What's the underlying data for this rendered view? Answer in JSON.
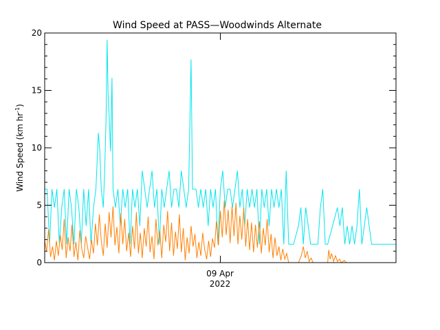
{
  "chart_data": {
    "type": "line",
    "title": "Wind Speed at PASS—Woodwinds Alternate",
    "ylabel_main": "Wind Speed (km hr",
    "ylabel_sup": "-1",
    "ylabel_close": ")",
    "xlabel_line1": "09 Apr",
    "xlabel_line2": "2022",
    "ylim": [
      0,
      20
    ],
    "yticks": [
      {
        "value": 0,
        "label": "0"
      },
      {
        "value": 5,
        "label": "5"
      },
      {
        "value": 10,
        "label": "10"
      },
      {
        "value": 15,
        "label": "15"
      },
      {
        "value": 20,
        "label": "20"
      }
    ],
    "x_hours": [
      0,
      72
    ],
    "x_major_tick_hour": 36,
    "grid": false,
    "colors": {
      "gust": "#00e5ee",
      "mean": "#ff7f00",
      "axis": "#000000"
    },
    "series": [
      {
        "key": "gust",
        "points": [
          [
            0,
            6.4
          ],
          [
            0.5,
            6.4
          ],
          [
            1,
            1.6
          ],
          [
            1.5,
            6.4
          ],
          [
            2,
            4.8
          ],
          [
            2.5,
            6.4
          ],
          [
            3,
            1.6
          ],
          [
            3.5,
            4.8
          ],
          [
            4,
            6.4
          ],
          [
            4.5,
            1.6
          ],
          [
            5,
            6.4
          ],
          [
            5.5,
            4.8
          ],
          [
            6,
            1.6
          ],
          [
            6.5,
            6.4
          ],
          [
            7,
            4.8
          ],
          [
            7.5,
            1.6
          ],
          [
            8,
            6.4
          ],
          [
            8.5,
            3.2
          ],
          [
            9,
            6.4
          ],
          [
            9.5,
            1.6
          ],
          [
            10,
            4.8
          ],
          [
            10.5,
            6.4
          ],
          [
            11,
            11.3
          ],
          [
            11.3,
            9.7
          ],
          [
            11.6,
            6.4
          ],
          [
            12,
            4.8
          ],
          [
            12.3,
            8.0
          ],
          [
            12.6,
            12.9
          ],
          [
            12.8,
            19.4
          ],
          [
            13,
            14.5
          ],
          [
            13.2,
            12.9
          ],
          [
            13.5,
            9.7
          ],
          [
            13.8,
            16.1
          ],
          [
            14,
            6.4
          ],
          [
            14.5,
            4.8
          ],
          [
            15,
            6.4
          ],
          [
            15.5,
            3.2
          ],
          [
            16,
            6.4
          ],
          [
            16.5,
            4.8
          ],
          [
            17,
            6.4
          ],
          [
            17.5,
            1.6
          ],
          [
            18,
            6.4
          ],
          [
            18.5,
            4.8
          ],
          [
            19,
            6.4
          ],
          [
            19.5,
            3.2
          ],
          [
            20,
            8.0
          ],
          [
            20.5,
            6.4
          ],
          [
            21,
            4.8
          ],
          [
            21.5,
            6.4
          ],
          [
            22,
            8.0
          ],
          [
            22.5,
            4.8
          ],
          [
            23,
            6.4
          ],
          [
            23.5,
            1.6
          ],
          [
            24,
            6.4
          ],
          [
            24.5,
            4.8
          ],
          [
            25,
            6.4
          ],
          [
            25.5,
            8.0
          ],
          [
            26,
            4.8
          ],
          [
            26.5,
            6.4
          ],
          [
            27,
            6.4
          ],
          [
            27.5,
            4.8
          ],
          [
            28,
            8.0
          ],
          [
            28.5,
            6.4
          ],
          [
            29,
            4.8
          ],
          [
            29.5,
            6.4
          ],
          [
            30,
            17.7
          ],
          [
            30.3,
            6.4
          ],
          [
            31,
            6.4
          ],
          [
            31.5,
            4.8
          ],
          [
            32,
            6.4
          ],
          [
            32.5,
            4.8
          ],
          [
            33,
            6.4
          ],
          [
            33.5,
            3.2
          ],
          [
            34,
            6.4
          ],
          [
            34.5,
            4.8
          ],
          [
            35,
            6.4
          ],
          [
            35.5,
            1.6
          ],
          [
            36,
            6.4
          ],
          [
            36.5,
            8.0
          ],
          [
            37,
            4.8
          ],
          [
            37.5,
            6.4
          ],
          [
            38,
            6.4
          ],
          [
            38.5,
            4.8
          ],
          [
            39,
            6.4
          ],
          [
            39.5,
            8.0
          ],
          [
            40,
            4.8
          ],
          [
            40.5,
            6.4
          ],
          [
            41,
            3.2
          ],
          [
            41.5,
            6.4
          ],
          [
            42,
            4.8
          ],
          [
            42.5,
            6.4
          ],
          [
            43,
            4.8
          ],
          [
            43.5,
            6.4
          ],
          [
            44,
            1.6
          ],
          [
            44.5,
            6.4
          ],
          [
            45,
            4.8
          ],
          [
            45.5,
            6.4
          ],
          [
            46,
            3.2
          ],
          [
            46.5,
            6.4
          ],
          [
            47,
            4.8
          ],
          [
            47.5,
            6.4
          ],
          [
            48,
            4.8
          ],
          [
            48.5,
            6.4
          ],
          [
            49,
            1.6
          ],
          [
            49.5,
            8.0
          ],
          [
            50,
            1.6
          ],
          [
            51,
            1.6
          ],
          [
            52,
            3.2
          ],
          [
            52.5,
            4.8
          ],
          [
            53,
            1.6
          ],
          [
            53.5,
            4.8
          ],
          [
            54,
            3.2
          ],
          [
            54.5,
            1.6
          ],
          [
            55,
            1.6
          ],
          [
            56,
            1.6
          ],
          [
            56.5,
            4.8
          ],
          [
            57,
            6.4
          ],
          [
            57.5,
            1.6
          ],
          [
            58,
            1.6
          ],
          [
            59,
            3.2
          ],
          [
            60,
            4.8
          ],
          [
            60.5,
            3.2
          ],
          [
            61,
            4.8
          ],
          [
            61.5,
            1.6
          ],
          [
            62,
            3.2
          ],
          [
            62.5,
            1.6
          ],
          [
            63,
            3.2
          ],
          [
            63.5,
            1.6
          ],
          [
            64,
            3.2
          ],
          [
            64.5,
            6.4
          ],
          [
            65,
            1.6
          ],
          [
            65.5,
            3.2
          ],
          [
            66,
            4.8
          ],
          [
            66.5,
            3.2
          ],
          [
            67,
            1.6
          ],
          [
            68,
            1.6
          ],
          [
            69,
            1.6
          ],
          [
            70,
            1.6
          ],
          [
            71,
            1.6
          ],
          [
            72,
            1.6
          ]
        ]
      },
      {
        "key": "mean",
        "points": [
          [
            0,
            1.9
          ],
          [
            0.4,
            1.0
          ],
          [
            0.8,
            2.9
          ],
          [
            1.2,
            0.5
          ],
          [
            1.6,
            1.4
          ],
          [
            2,
            0.2
          ],
          [
            2.4,
            1.9
          ],
          [
            2.8,
            0.6
          ],
          [
            3.2,
            2.4
          ],
          [
            3.6,
            1.1
          ],
          [
            4,
            3.8
          ],
          [
            4.4,
            0.4
          ],
          [
            4.8,
            2.2
          ],
          [
            5.2,
            1.0
          ],
          [
            5.6,
            3.3
          ],
          [
            6,
            0.5
          ],
          [
            6.4,
            1.8
          ],
          [
            6.8,
            0.2
          ],
          [
            7.2,
            2.8
          ],
          [
            7.6,
            1.2
          ],
          [
            8,
            0.4
          ],
          [
            8.4,
            2.3
          ],
          [
            8.8,
            1.3
          ],
          [
            9.2,
            0.3
          ],
          [
            9.6,
            2.0
          ],
          [
            10,
            0.8
          ],
          [
            10.4,
            3.4
          ],
          [
            10.8,
            1.5
          ],
          [
            11.2,
            4.2
          ],
          [
            11.6,
            1.9
          ],
          [
            12,
            0.6
          ],
          [
            12.4,
            3.4
          ],
          [
            12.8,
            1.3
          ],
          [
            13.2,
            4.4
          ],
          [
            13.6,
            2.2
          ],
          [
            14,
            4.9
          ],
          [
            14.4,
            1.5
          ],
          [
            14.8,
            3.1
          ],
          [
            15.2,
            0.8
          ],
          [
            15.6,
            4.3
          ],
          [
            16,
            1.6
          ],
          [
            16.4,
            3.8
          ],
          [
            16.8,
            1.0
          ],
          [
            17.2,
            2.6
          ],
          [
            17.6,
            0.5
          ],
          [
            18,
            3.2
          ],
          [
            18.4,
            1.2
          ],
          [
            18.8,
            4.4
          ],
          [
            19.2,
            0.8
          ],
          [
            19.6,
            2.6
          ],
          [
            20,
            0.4
          ],
          [
            20.4,
            3.0
          ],
          [
            20.8,
            1.4
          ],
          [
            21.2,
            4.0
          ],
          [
            21.6,
            0.9
          ],
          [
            22,
            2.3
          ],
          [
            22.4,
            0.3
          ],
          [
            22.8,
            3.8
          ],
          [
            23.2,
            1.5
          ],
          [
            23.6,
            2.8
          ],
          [
            24,
            0.4
          ],
          [
            24.4,
            3.3
          ],
          [
            24.8,
            1.8
          ],
          [
            25.2,
            4.5
          ],
          [
            25.6,
            1.0
          ],
          [
            26,
            3.5
          ],
          [
            26.4,
            0.6
          ],
          [
            26.8,
            2.7
          ],
          [
            27.2,
            1.2
          ],
          [
            27.6,
            4.2
          ],
          [
            28,
            0.9
          ],
          [
            28.4,
            3.0
          ],
          [
            28.8,
            0.2
          ],
          [
            29.2,
            2.2
          ],
          [
            29.6,
            0.8
          ],
          [
            30,
            3.2
          ],
          [
            30.4,
            1.4
          ],
          [
            30.8,
            2.5
          ],
          [
            31.2,
            0.4
          ],
          [
            31.6,
            1.8
          ],
          [
            32,
            0.6
          ],
          [
            32.4,
            2.6
          ],
          [
            32.8,
            1.1
          ],
          [
            33.2,
            0.3
          ],
          [
            33.6,
            1.9
          ],
          [
            34,
            0.5
          ],
          [
            34.4,
            2.1
          ],
          [
            34.8,
            1.3
          ],
          [
            35.2,
            3.6
          ],
          [
            35.6,
            1.5
          ],
          [
            36,
            4.5
          ],
          [
            36.4,
            2.2
          ],
          [
            36.8,
            5.4
          ],
          [
            37.2,
            2.4
          ],
          [
            37.6,
            4.6
          ],
          [
            38,
            1.7
          ],
          [
            38.4,
            4.9
          ],
          [
            38.8,
            2.3
          ],
          [
            39.2,
            5.2
          ],
          [
            39.6,
            1.6
          ],
          [
            40,
            4.1
          ],
          [
            40.4,
            2.0
          ],
          [
            40.8,
            4.8
          ],
          [
            41.2,
            1.4
          ],
          [
            41.6,
            3.8
          ],
          [
            42,
            1.1
          ],
          [
            42.4,
            3.5
          ],
          [
            42.8,
            0.9
          ],
          [
            43.2,
            3.3
          ],
          [
            43.6,
            1.3
          ],
          [
            44,
            3.6
          ],
          [
            44.4,
            0.8
          ],
          [
            44.8,
            3.0
          ],
          [
            45.2,
            1.5
          ],
          [
            45.6,
            3.8
          ],
          [
            46,
            0.9
          ],
          [
            46.4,
            2.5
          ],
          [
            46.8,
            0.4
          ],
          [
            47.2,
            2.2
          ],
          [
            47.6,
            0.6
          ],
          [
            48,
            1.4
          ],
          [
            48.4,
            0.2
          ],
          [
            48.8,
            1.2
          ],
          [
            49.2,
            0.3
          ],
          [
            49.6,
            0.8
          ],
          [
            50,
            0
          ],
          [
            51,
            0
          ],
          [
            52,
            0
          ],
          [
            52.6,
            0.6
          ],
          [
            53,
            1.4
          ],
          [
            53.4,
            0.4
          ],
          [
            53.8,
            1.0
          ],
          [
            54.2,
            0.1
          ],
          [
            54.6,
            0.4
          ],
          [
            55,
            0
          ],
          [
            56,
            0
          ],
          [
            57,
            0
          ],
          [
            58,
            0
          ],
          [
            58.2,
            1.1
          ],
          [
            58.5,
            0.3
          ],
          [
            58.8,
            0.8
          ],
          [
            59.2,
            0.1
          ],
          [
            59.6,
            0.6
          ],
          [
            60,
            0.1
          ],
          [
            60.4,
            0.3
          ],
          [
            60.8,
            0
          ],
          [
            61.4,
            0.2
          ],
          [
            61.8,
            0
          ],
          [
            62,
            0
          ],
          [
            63,
            0
          ],
          [
            64,
            0
          ],
          [
            65,
            0
          ],
          [
            66,
            0
          ],
          [
            67,
            0
          ],
          [
            68,
            0
          ],
          [
            69,
            0
          ],
          [
            70,
            0
          ],
          [
            71,
            0
          ],
          [
            72,
            0
          ]
        ]
      }
    ]
  }
}
